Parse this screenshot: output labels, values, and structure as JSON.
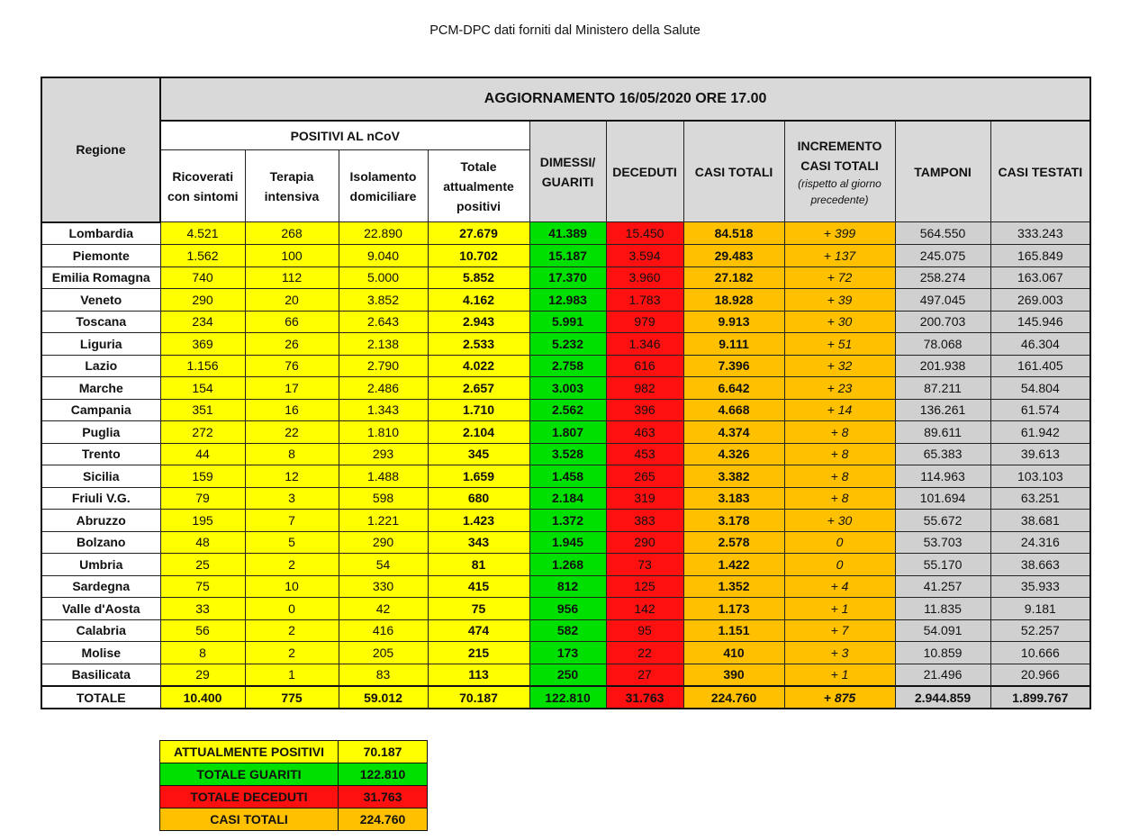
{
  "source": "PCM-DPC dati forniti dal Ministero della Salute",
  "title": "AGGIORNAMENTO 16/05/2020 ORE 17.00",
  "headers": {
    "regione": "Regione",
    "positivi_group": "POSITIVI AL nCoV",
    "ricoverati": "Ricoverati con sintomi",
    "terapia": "Terapia intensiva",
    "isolamento": "Isolamento domiciliare",
    "totale_positivi": "Totale attualmente positivi",
    "dimessi": "DIMESSI/ GUARITI",
    "deceduti": "DECEDUTI",
    "casi_totali": "CASI TOTALI",
    "incremento": "INCREMENTO CASI TOTALI",
    "incremento_note": "(rispetto al giorno precedente)",
    "tamponi": "TAMPONI",
    "casi_testati": "CASI TESTATI"
  },
  "colors": {
    "yellow": "#ffff00",
    "green": "#00e000",
    "red": "#ff1010",
    "orange": "#ffc000",
    "grey": "#d0d0d0"
  },
  "rows": [
    [
      "Lombardia",
      "4.521",
      "268",
      "22.890",
      "27.679",
      "41.389",
      "15.450",
      "84.518",
      "+ 399",
      "564.550",
      "333.243"
    ],
    [
      "Piemonte",
      "1.562",
      "100",
      "9.040",
      "10.702",
      "15.187",
      "3.594",
      "29.483",
      "+ 137",
      "245.075",
      "165.849"
    ],
    [
      "Emilia Romagna",
      "740",
      "112",
      "5.000",
      "5.852",
      "17.370",
      "3.960",
      "27.182",
      "+ 72",
      "258.274",
      "163.067"
    ],
    [
      "Veneto",
      "290",
      "20",
      "3.852",
      "4.162",
      "12.983",
      "1.783",
      "18.928",
      "+ 39",
      "497.045",
      "269.003"
    ],
    [
      "Toscana",
      "234",
      "66",
      "2.643",
      "2.943",
      "5.991",
      "979",
      "9.913",
      "+ 30",
      "200.703",
      "145.946"
    ],
    [
      "Liguria",
      "369",
      "26",
      "2.138",
      "2.533",
      "5.232",
      "1.346",
      "9.111",
      "+ 51",
      "78.068",
      "46.304"
    ],
    [
      "Lazio",
      "1.156",
      "76",
      "2.790",
      "4.022",
      "2.758",
      "616",
      "7.396",
      "+ 32",
      "201.938",
      "161.405"
    ],
    [
      "Marche",
      "154",
      "17",
      "2.486",
      "2.657",
      "3.003",
      "982",
      "6.642",
      "+ 23",
      "87.211",
      "54.804"
    ],
    [
      "Campania",
      "351",
      "16",
      "1.343",
      "1.710",
      "2.562",
      "396",
      "4.668",
      "+ 14",
      "136.261",
      "61.574"
    ],
    [
      "Puglia",
      "272",
      "22",
      "1.810",
      "2.104",
      "1.807",
      "463",
      "4.374",
      "+ 8",
      "89.611",
      "61.942"
    ],
    [
      "Trento",
      "44",
      "8",
      "293",
      "345",
      "3.528",
      "453",
      "4.326",
      "+ 8",
      "65.383",
      "39.613"
    ],
    [
      "Sicilia",
      "159",
      "12",
      "1.488",
      "1.659",
      "1.458",
      "265",
      "3.382",
      "+ 8",
      "114.963",
      "103.103"
    ],
    [
      "Friuli V.G.",
      "79",
      "3",
      "598",
      "680",
      "2.184",
      "319",
      "3.183",
      "+ 8",
      "101.694",
      "63.251"
    ],
    [
      "Abruzzo",
      "195",
      "7",
      "1.221",
      "1.423",
      "1.372",
      "383",
      "3.178",
      "+ 30",
      "55.672",
      "38.681"
    ],
    [
      "Bolzano",
      "48",
      "5",
      "290",
      "343",
      "1.945",
      "290",
      "2.578",
      "0",
      "53.703",
      "24.316"
    ],
    [
      "Umbria",
      "25",
      "2",
      "54",
      "81",
      "1.268",
      "73",
      "1.422",
      "0",
      "55.170",
      "38.663"
    ],
    [
      "Sardegna",
      "75",
      "10",
      "330",
      "415",
      "812",
      "125",
      "1.352",
      "+ 4",
      "41.257",
      "35.933"
    ],
    [
      "Valle d'Aosta",
      "33",
      "0",
      "42",
      "75",
      "956",
      "142",
      "1.173",
      "+ 1",
      "11.835",
      "9.181"
    ],
    [
      "Calabria",
      "56",
      "2",
      "416",
      "474",
      "582",
      "95",
      "1.151",
      "+ 7",
      "54.091",
      "52.257"
    ],
    [
      "Molise",
      "8",
      "2",
      "205",
      "215",
      "173",
      "22",
      "410",
      "+ 3",
      "10.859",
      "10.666"
    ],
    [
      "Basilicata",
      "29",
      "1",
      "83",
      "113",
      "250",
      "27",
      "390",
      "+ 1",
      "21.496",
      "20.966"
    ]
  ],
  "totals": [
    "TOTALE",
    "10.400",
    "775",
    "59.012",
    "70.187",
    "122.810",
    "31.763",
    "224.760",
    "+ 875",
    "2.944.859",
    "1.899.767"
  ],
  "summary": [
    {
      "label": "ATTUALMENTE POSITIVI",
      "value": "70.187"
    },
    {
      "label": "TOTALE GUARITI",
      "value": "122.810"
    },
    {
      "label": "TOTALE DECEDUTI",
      "value": "31.763"
    },
    {
      "label": "CASI TOTALI",
      "value": "224.760"
    }
  ]
}
